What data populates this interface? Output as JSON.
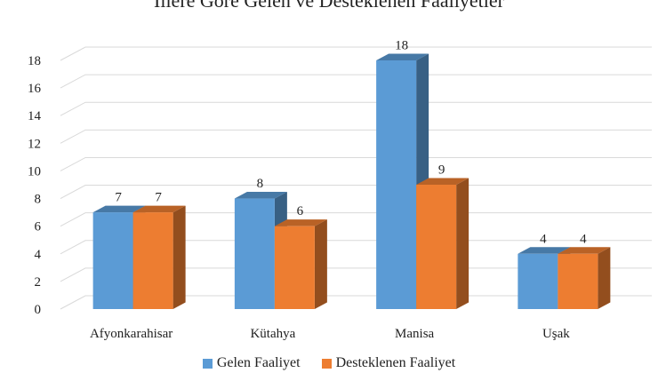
{
  "chart_data": {
    "type": "bar",
    "title": "İllere Göre Gelen ve Desteklenen Faaliyetler",
    "categories": [
      "Afyonkarahisar",
      "Kütahya",
      "Manisa",
      "Uşak"
    ],
    "series": [
      {
        "name": "Gelen Faaliyet",
        "values": [
          7,
          8,
          18,
          4
        ],
        "color": "#5B9BD5"
      },
      {
        "name": "Desteklenen Faaliyet",
        "values": [
          7,
          6,
          9,
          4
        ],
        "color": "#ED7D31"
      }
    ],
    "yticks": [
      "0",
      "2",
      "4",
      "6",
      "8",
      "10",
      "12",
      "14",
      "16",
      "18"
    ],
    "ylim": [
      0,
      18
    ],
    "grid": true,
    "legend": "bottom",
    "style": "3d-clustered-column"
  }
}
